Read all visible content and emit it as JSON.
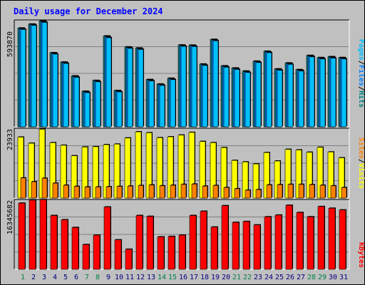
{
  "title": "Daily usage for December 2024",
  "colors": {
    "background": "#c0c0c0",
    "title": "#0000ff",
    "pages": "#00c0ff",
    "files": "#0080ff",
    "hits": "#008080",
    "sites": "#ff8000",
    "visits": "#ffff00",
    "kbytes": "#ff0000",
    "weekday_label": "#000080",
    "weekend_label": "#008040"
  },
  "legends": {
    "top": {
      "pages": "Pages",
      "files": "Files",
      "hits": "Hits",
      "sep": "/"
    },
    "mid": {
      "sites": "Sites",
      "visits": "Visits",
      "sep": "/"
    },
    "bottom": {
      "kbytes": "KBytes"
    }
  },
  "chart_data": [
    {
      "type": "bar",
      "panel": "hits-files-pages",
      "max_label": "593870",
      "ylim": [
        0,
        593870
      ],
      "categories": [
        "1",
        "2",
        "3",
        "4",
        "5",
        "6",
        "7",
        "8",
        "9",
        "10",
        "11",
        "12",
        "13",
        "14",
        "15",
        "16",
        "17",
        "18",
        "19",
        "20",
        "21",
        "22",
        "23",
        "24",
        "25",
        "26",
        "27",
        "28",
        "29",
        "30",
        "31"
      ],
      "series": [
        {
          "name": "Hits",
          "values": [
            549000,
            571000,
            588000,
            412000,
            360000,
            283000,
            198000,
            258000,
            505000,
            202000,
            444000,
            438000,
            263000,
            238000,
            270000,
            455000,
            454000,
            349000,
            486000,
            339000,
            327000,
            310000,
            365000,
            420000,
            322000,
            355000,
            318000,
            397000,
            385000,
            390000,
            385000
          ]
        },
        {
          "name": "Files",
          "values": [
            545000,
            568000,
            584000,
            408000,
            356000,
            279000,
            194000,
            254000,
            500000,
            198000,
            440000,
            434000,
            259000,
            234000,
            266000,
            451000,
            450000,
            345000,
            482000,
            335000,
            323000,
            306000,
            361000,
            416000,
            318000,
            351000,
            314000,
            393000,
            381000,
            386000,
            381000
          ]
        },
        {
          "name": "Pages",
          "values": [
            541000,
            564000,
            580000,
            404000,
            352000,
            275000,
            190000,
            250000,
            495000,
            194000,
            436000,
            430000,
            255000,
            230000,
            262000,
            447000,
            446000,
            341000,
            478000,
            331000,
            319000,
            302000,
            357000,
            412000,
            314000,
            347000,
            310000,
            389000,
            377000,
            382000,
            377000
          ]
        }
      ]
    },
    {
      "type": "bar",
      "panel": "visits-sites",
      "max_label": "23933",
      "ylim": [
        0,
        23933
      ],
      "categories": [
        "1",
        "2",
        "3",
        "4",
        "5",
        "6",
        "7",
        "8",
        "9",
        "10",
        "11",
        "12",
        "13",
        "14",
        "15",
        "16",
        "17",
        "18",
        "19",
        "20",
        "21",
        "22",
        "23",
        "24",
        "25",
        "26",
        "27",
        "28",
        "29",
        "30",
        "31"
      ],
      "series": [
        {
          "name": "Visits",
          "values": [
            20900,
            18800,
            23600,
            19000,
            18100,
            14500,
            17500,
            17600,
            18300,
            18500,
            20600,
            22700,
            22400,
            20700,
            21000,
            21600,
            22500,
            19400,
            19000,
            17300,
            12900,
            12400,
            11700,
            15600,
            12700,
            16700,
            16500,
            15700,
            17400,
            15800,
            13800
          ]
        },
        {
          "name": "Sites",
          "values": [
            6900,
            5600,
            6800,
            5100,
            4400,
            4000,
            3800,
            3800,
            3900,
            4000,
            4100,
            4300,
            4500,
            4200,
            4400,
            4700,
            4800,
            4100,
            4300,
            3600,
            3200,
            2700,
            2900,
            4500,
            4600,
            4700,
            4700,
            4600,
            4400,
            4200,
            3600
          ]
        }
      ]
    },
    {
      "type": "bar",
      "panel": "kbytes",
      "max_label": "16345682",
      "ylim": [
        0,
        16345682
      ],
      "categories": [
        "1",
        "2",
        "3",
        "4",
        "5",
        "6",
        "7",
        "8",
        "9",
        "10",
        "11",
        "12",
        "13",
        "14",
        "15",
        "16",
        "17",
        "18",
        "19",
        "20",
        "21",
        "22",
        "23",
        "24",
        "25",
        "26",
        "27",
        "28",
        "29",
        "30",
        "31"
      ],
      "series": [
        {
          "name": "KBytes",
          "values": [
            15500000,
            16200000,
            16300000,
            12600000,
            11600000,
            9800000,
            5800000,
            8000000,
            14600000,
            6900000,
            4700000,
            12600000,
            12400000,
            7600000,
            7700000,
            8000000,
            12600000,
            13600000,
            9900000,
            14900000,
            11000000,
            11200000,
            10400000,
            12300000,
            12700000,
            15000000,
            13300000,
            12300000,
            14700000,
            14300000,
            13900000
          ]
        }
      ]
    }
  ]
}
